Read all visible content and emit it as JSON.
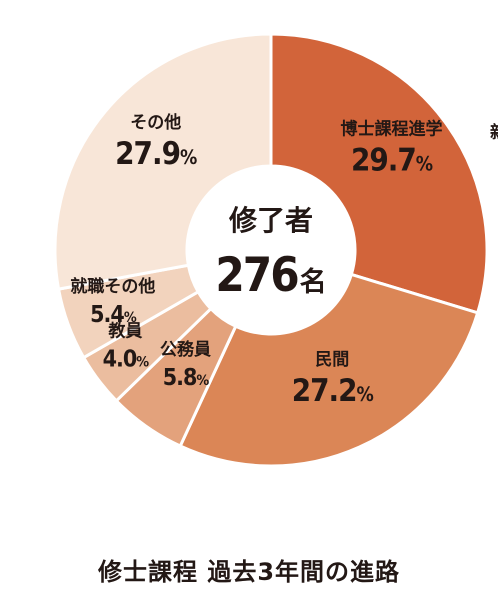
{
  "chart_data": {
    "type": "pie",
    "variant": "donut",
    "title": "修士課程 過去3年間の進路",
    "center": {
      "label": "修了者",
      "value": "276",
      "unit": "名"
    },
    "unit": "%",
    "slices": [
      {
        "label": "博士課程進学",
        "value": 29.7,
        "display": "29.7",
        "color": "#d2643a"
      },
      {
        "label": "民間",
        "value": 27.2,
        "display": "27.2",
        "color": "#db8656"
      },
      {
        "label": "公務員",
        "value": 5.8,
        "display": "5.8",
        "color": "#e3a27c"
      },
      {
        "label": "教員",
        "value": 4.0,
        "display": "4.0",
        "color": "#ebbd9f"
      },
      {
        "label": "就職その他",
        "value": 5.4,
        "display": "5.4",
        "color": "#f2d3bd"
      },
      {
        "label": "その他",
        "value": 27.9,
        "display": "27.9",
        "color": "#f8e6d8"
      }
    ],
    "edge_fragment": "新"
  }
}
